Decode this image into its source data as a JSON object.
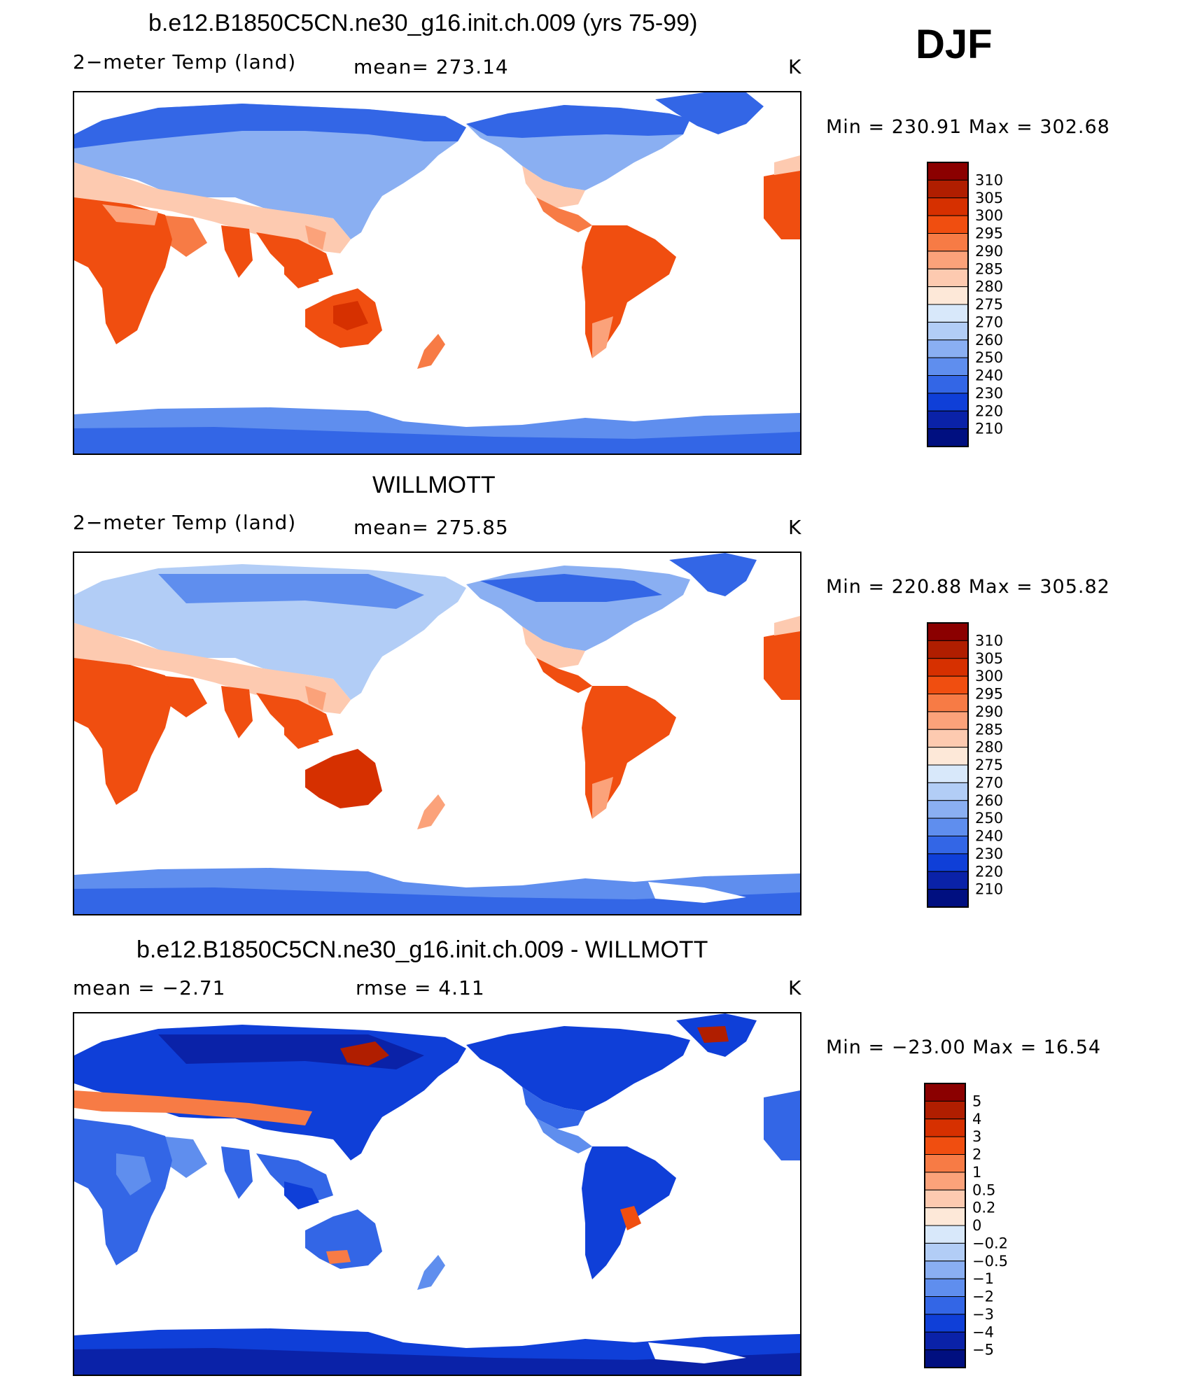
{
  "header": {
    "season": "DJF"
  },
  "panels": [
    {
      "title": "b.e12.B1850C5CN.ne30_g16.init.ch.009 (yrs 75-99)",
      "left_label": "2−meter Temp (land)",
      "mid_label": "mean=  273.14",
      "units": "K",
      "minmax": "Min  =  230.91  Max  =  302.68",
      "colorbar_labels": [
        "310",
        "305",
        "300",
        "295",
        "290",
        "285",
        "280",
        "275",
        "270",
        "260",
        "250",
        "240",
        "230",
        "220",
        "210"
      ],
      "map_type": "absolute"
    },
    {
      "title": "WILLMOTT",
      "left_label": "2−meter Temp (land)",
      "mid_label": "mean=  275.85",
      "units": "K",
      "minmax": "Min  =  220.88  Max  =  305.82",
      "colorbar_labels": [
        "310",
        "305",
        "300",
        "295",
        "290",
        "285",
        "280",
        "275",
        "270",
        "260",
        "250",
        "240",
        "230",
        "220",
        "210"
      ],
      "map_type": "absolute"
    },
    {
      "title": "b.e12.B1850C5CN.ne30_g16.init.ch.009 - WILLMOTT",
      "left_label": "mean  =    −2.71",
      "mid_label": "rmse  =     4.11",
      "units": "K",
      "minmax": "Min  =  −23.00  Max  =    16.54",
      "colorbar_labels": [
        "5",
        "4",
        "3",
        "2",
        "1",
        "0.5",
        "0.2",
        "0",
        "−0.2",
        "−0.5",
        "−1",
        "−2",
        "−3",
        "−4",
        "−5"
      ],
      "map_type": "difference"
    }
  ],
  "colors": {
    "palette": [
      "#8B0000",
      "#B01E00",
      "#D63000",
      "#F04E10",
      "#F77B45",
      "#FBA27A",
      "#FDCAB0",
      "#FDE8D8",
      "#D8E8FA",
      "#B2CDF6",
      "#8AAFF2",
      "#5F8EEE",
      "#3366E6",
      "#0F3FD8",
      "#0A22A8",
      "#000F80"
    ]
  }
}
